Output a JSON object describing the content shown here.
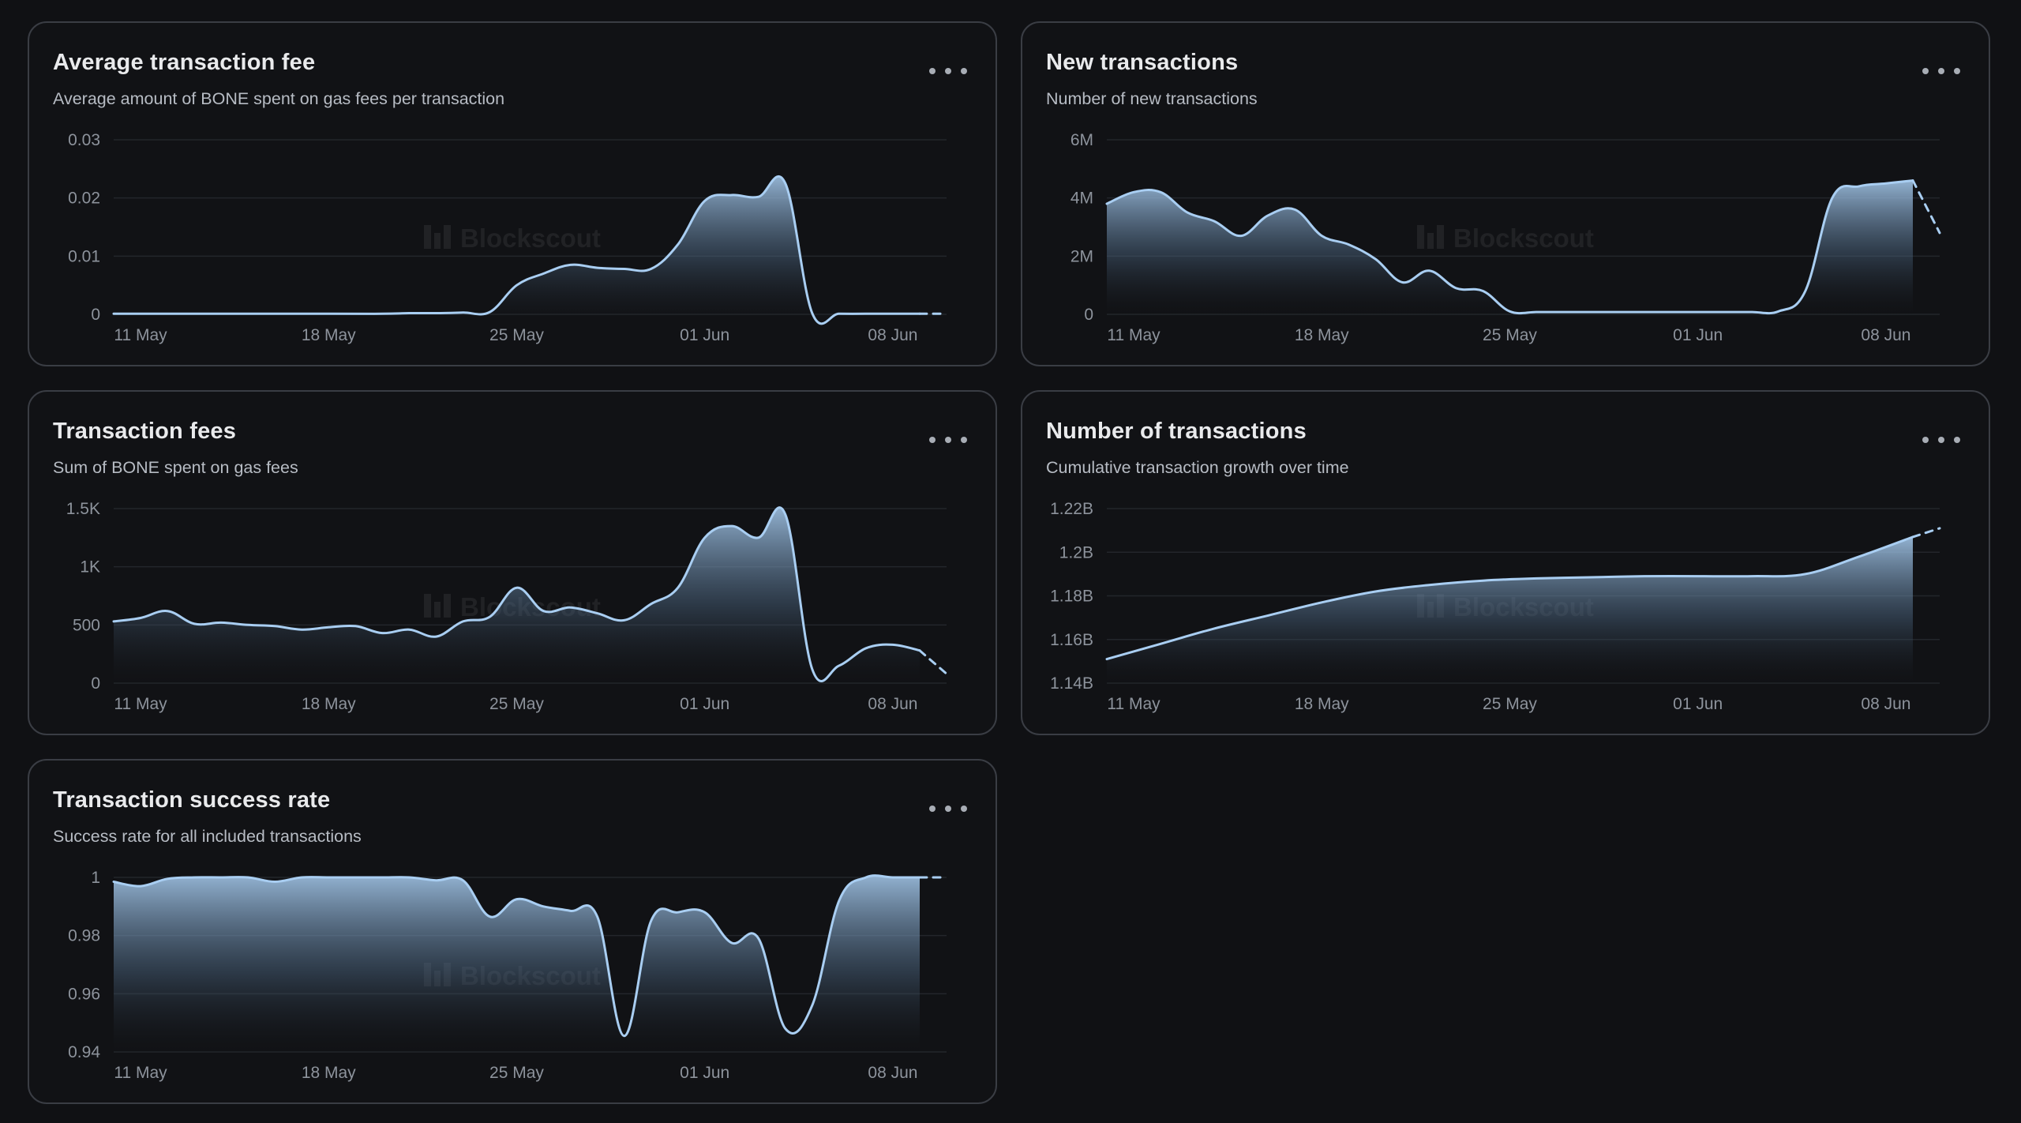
{
  "watermark": "Blockscout",
  "colors": {
    "background": "#101114",
    "card_border": "#3a3d44",
    "line": "#a9cef2",
    "area_top": "#a9cef2"
  },
  "menu_icon": "more-horizontal-icon",
  "chart_data": [
    {
      "id": "avg-fee",
      "type": "area",
      "title": "Average transaction fee",
      "subtitle": "Average amount of BONE spent on gas fees per transaction",
      "x_tick_labels": [
        "11 May",
        "18 May",
        "25 May",
        "01 Jun",
        "08 Jun"
      ],
      "x_tick_days": [
        1,
        8,
        15,
        22,
        29
      ],
      "x_range_days": [
        0,
        31
      ],
      "ylim": [
        0,
        0.03
      ],
      "y_ticks": [
        0,
        0.01,
        0.02,
        0.03
      ],
      "y_tick_labels": [
        "0",
        "0.01",
        "0.02",
        "0.03"
      ],
      "solid_until_day": 30,
      "points": [
        [
          0,
          0.0001
        ],
        [
          4,
          0.0001
        ],
        [
          8,
          0.0001
        ],
        [
          10,
          0.0001
        ],
        [
          11,
          0.0002
        ],
        [
          12,
          0.0002
        ],
        [
          13,
          0.0003
        ],
        [
          14,
          0.0004
        ],
        [
          15,
          0.005
        ],
        [
          16,
          0.007
        ],
        [
          17,
          0.0085
        ],
        [
          18,
          0.008
        ],
        [
          19,
          0.0078
        ],
        [
          20,
          0.0078
        ],
        [
          21,
          0.012
        ],
        [
          22,
          0.0195
        ],
        [
          23,
          0.0205
        ],
        [
          24,
          0.0202
        ],
        [
          25,
          0.0225
        ],
        [
          26,
          0.0002
        ],
        [
          27,
          0.0001
        ],
        [
          28,
          0.0001
        ],
        [
          29,
          0.0001
        ],
        [
          30,
          0.0001
        ],
        [
          31,
          0.0001
        ]
      ]
    },
    {
      "id": "new-tx",
      "type": "area",
      "title": "New transactions",
      "subtitle": "Number of new transactions",
      "x_tick_labels": [
        "11 May",
        "18 May",
        "25 May",
        "01 Jun",
        "08 Jun"
      ],
      "x_tick_days": [
        1,
        8,
        15,
        22,
        29
      ],
      "x_range_days": [
        0,
        31
      ],
      "ylim": [
        0,
        6000000
      ],
      "y_ticks": [
        0,
        2000000,
        4000000,
        6000000
      ],
      "y_tick_labels": [
        "0",
        "2M",
        "4M",
        "6M"
      ],
      "solid_until_day": 30,
      "points": [
        [
          0,
          3800000
        ],
        [
          1,
          4200000
        ],
        [
          2,
          4200000
        ],
        [
          3,
          3500000
        ],
        [
          4,
          3200000
        ],
        [
          5,
          2700000
        ],
        [
          6,
          3400000
        ],
        [
          7,
          3600000
        ],
        [
          8,
          2700000
        ],
        [
          9,
          2400000
        ],
        [
          10,
          1900000
        ],
        [
          11,
          1100000
        ],
        [
          12,
          1500000
        ],
        [
          13,
          900000
        ],
        [
          14,
          800000
        ],
        [
          15,
          100000
        ],
        [
          16,
          80000
        ],
        [
          17,
          80000
        ],
        [
          18,
          80000
        ],
        [
          19,
          80000
        ],
        [
          20,
          80000
        ],
        [
          21,
          80000
        ],
        [
          22,
          80000
        ],
        [
          23,
          80000
        ],
        [
          24,
          80000
        ],
        [
          25,
          100000
        ],
        [
          26,
          800000
        ],
        [
          27,
          4000000
        ],
        [
          28,
          4400000
        ],
        [
          29,
          4500000
        ],
        [
          30,
          4600000
        ],
        [
          31,
          2800000
        ]
      ]
    },
    {
      "id": "tx-fees",
      "type": "area",
      "title": "Transaction fees",
      "subtitle": "Sum of BONE spent on gas fees",
      "x_tick_labels": [
        "11 May",
        "18 May",
        "25 May",
        "01 Jun",
        "08 Jun"
      ],
      "x_tick_days": [
        1,
        8,
        15,
        22,
        29
      ],
      "x_range_days": [
        0,
        31
      ],
      "ylim": [
        0,
        1500
      ],
      "y_ticks": [
        0,
        500,
        1000,
        1500
      ],
      "y_tick_labels": [
        "0",
        "500",
        "1K",
        "1.5K"
      ],
      "solid_until_day": 30,
      "points": [
        [
          0,
          530
        ],
        [
          1,
          560
        ],
        [
          2,
          620
        ],
        [
          3,
          510
        ],
        [
          4,
          520
        ],
        [
          5,
          500
        ],
        [
          6,
          490
        ],
        [
          7,
          460
        ],
        [
          8,
          480
        ],
        [
          9,
          490
        ],
        [
          10,
          430
        ],
        [
          11,
          460
        ],
        [
          12,
          400
        ],
        [
          13,
          530
        ],
        [
          14,
          570
        ],
        [
          15,
          820
        ],
        [
          16,
          620
        ],
        [
          17,
          650
        ],
        [
          18,
          600
        ],
        [
          19,
          540
        ],
        [
          20,
          680
        ],
        [
          21,
          820
        ],
        [
          22,
          1250
        ],
        [
          23,
          1350
        ],
        [
          24,
          1250
        ],
        [
          25,
          1450
        ],
        [
          26,
          120
        ],
        [
          27,
          150
        ],
        [
          28,
          300
        ],
        [
          29,
          330
        ],
        [
          30,
          280
        ],
        [
          31,
          80
        ]
      ]
    },
    {
      "id": "num-tx",
      "type": "area",
      "title": "Number of transactions",
      "subtitle": "Cumulative transaction growth over time",
      "x_tick_labels": [
        "11 May",
        "18 May",
        "25 May",
        "01 Jun",
        "08 Jun"
      ],
      "x_tick_days": [
        1,
        8,
        15,
        22,
        29
      ],
      "x_range_days": [
        0,
        31
      ],
      "ylim": [
        1140000000,
        1220000000
      ],
      "y_ticks": [
        1140000000,
        1160000000,
        1180000000,
        1200000000,
        1220000000
      ],
      "y_tick_labels": [
        "1.14B",
        "1.16B",
        "1.18B",
        "1.2B",
        "1.22B"
      ],
      "solid_until_day": 30,
      "points": [
        [
          0,
          1151000000
        ],
        [
          2,
          1158000000
        ],
        [
          4,
          1165000000
        ],
        [
          6,
          1171000000
        ],
        [
          8,
          1177000000
        ],
        [
          10,
          1182000000
        ],
        [
          12,
          1185000000
        ],
        [
          14,
          1187000000
        ],
        [
          16,
          1188000000
        ],
        [
          18,
          1188500000
        ],
        [
          20,
          1189000000
        ],
        [
          22,
          1189000000
        ],
        [
          24,
          1189000000
        ],
        [
          26,
          1190000000
        ],
        [
          28,
          1198000000
        ],
        [
          30,
          1207000000
        ],
        [
          31,
          1211000000
        ]
      ]
    },
    {
      "id": "success-rate",
      "type": "area",
      "title": "Transaction success rate",
      "subtitle": "Success rate for all included transactions",
      "x_tick_labels": [
        "11 May",
        "18 May",
        "25 May",
        "01 Jun",
        "08 Jun"
      ],
      "x_tick_days": [
        1,
        8,
        15,
        22,
        29
      ],
      "x_range_days": [
        0,
        31
      ],
      "ylim": [
        0.94,
        1
      ],
      "y_ticks": [
        0.94,
        0.96,
        0.98,
        1
      ],
      "y_tick_labels": [
        "0.94",
        "0.96",
        "0.98",
        "1"
      ],
      "solid_until_day": 30,
      "points": [
        [
          0,
          0.9985
        ],
        [
          1,
          0.997
        ],
        [
          2,
          0.9995
        ],
        [
          3,
          1
        ],
        [
          4,
          1
        ],
        [
          5,
          1
        ],
        [
          6,
          0.9985
        ],
        [
          7,
          1
        ],
        [
          8,
          1
        ],
        [
          9,
          1
        ],
        [
          10,
          1
        ],
        [
          11,
          1
        ],
        [
          12,
          0.999
        ],
        [
          13,
          0.999
        ],
        [
          14,
          0.9865
        ],
        [
          15,
          0.9925
        ],
        [
          16,
          0.99
        ],
        [
          17,
          0.9885
        ],
        [
          18,
          0.9865
        ],
        [
          19,
          0.9455
        ],
        [
          20,
          0.985
        ],
        [
          21,
          0.988
        ],
        [
          22,
          0.988
        ],
        [
          23,
          0.9775
        ],
        [
          24,
          0.979
        ],
        [
          25,
          0.948
        ],
        [
          26,
          0.956
        ],
        [
          27,
          0.992
        ],
        [
          28,
          1
        ],
        [
          29,
          1
        ],
        [
          30,
          1
        ],
        [
          31,
          1
        ]
      ]
    }
  ]
}
